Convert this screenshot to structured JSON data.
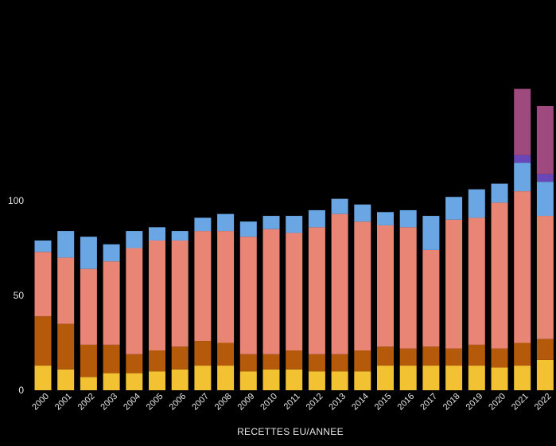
{
  "chart_data": {
    "type": "bar",
    "stacked": true,
    "title": "",
    "xlabel": "RECETTES EU/ANNEE",
    "ylabel": "",
    "ylim": [
      0,
      175
    ],
    "yticks": [
      0,
      50,
      100
    ],
    "grid": false,
    "legend": "none",
    "categories": [
      "2000",
      "2001",
      "2002",
      "2003",
      "2004",
      "2005",
      "2006",
      "2007",
      "2008",
      "2009",
      "2010",
      "2011",
      "2012",
      "2013",
      "2014",
      "2015",
      "2016",
      "2017",
      "2018",
      "2019",
      "2020",
      "2021",
      "2022"
    ],
    "series": [
      {
        "color": "#f2c232",
        "values": [
          13,
          11,
          7,
          9,
          9,
          10,
          11,
          13,
          13,
          10,
          11,
          11,
          10,
          10,
          10,
          13,
          13,
          13,
          13,
          13,
          12,
          13,
          16
        ]
      },
      {
        "color": "#b55a0a",
        "values": [
          26,
          24,
          17,
          15,
          10,
          11,
          12,
          13,
          12,
          9,
          8,
          10,
          9,
          9,
          11,
          10,
          9,
          10,
          9,
          11,
          10,
          12,
          11
        ]
      },
      {
        "color": "#e88574",
        "values": [
          34,
          35,
          40,
          44,
          56,
          58,
          56,
          58,
          59,
          62,
          66,
          62,
          67,
          74,
          68,
          64,
          64,
          51,
          68,
          67,
          77,
          80,
          65
        ]
      },
      {
        "color": "#6aa6e3",
        "values": [
          6,
          14,
          17,
          9,
          9,
          7,
          5,
          7,
          9,
          8,
          7,
          9,
          9,
          8,
          9,
          7,
          9,
          18,
          12,
          15,
          10,
          15,
          18
        ]
      },
      {
        "color": "#6a47b8",
        "values": [
          0,
          0,
          0,
          0,
          0,
          0,
          0,
          0,
          0,
          0,
          0,
          0,
          0,
          0,
          0,
          0,
          0,
          0,
          0,
          0,
          0,
          4,
          4
        ]
      },
      {
        "color": "#9e4a7e",
        "values": [
          0,
          0,
          0,
          0,
          0,
          0,
          0,
          0,
          0,
          0,
          0,
          0,
          0,
          0,
          0,
          0,
          0,
          0,
          0,
          0,
          0,
          35,
          36
        ]
      }
    ]
  }
}
